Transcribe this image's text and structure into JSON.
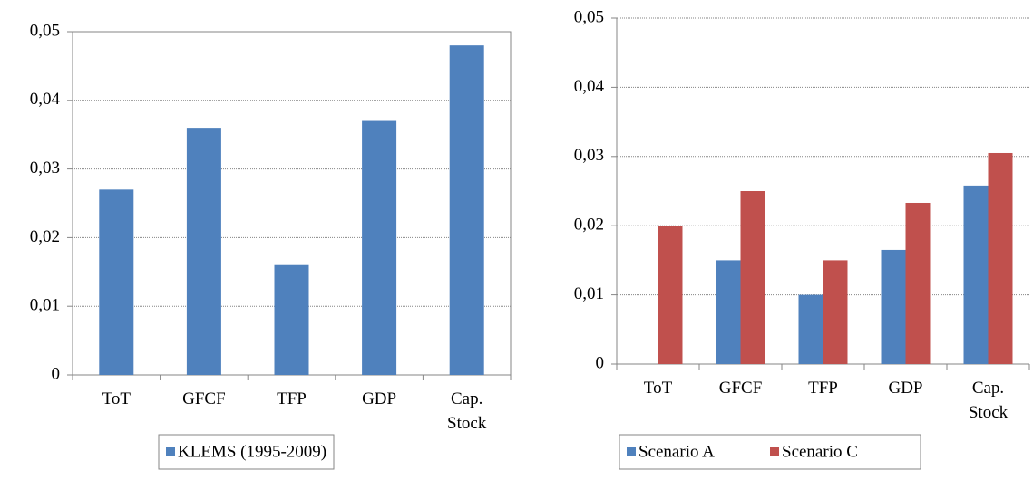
{
  "chart_data": [
    {
      "type": "bar",
      "categories": [
        "ToT",
        "GFCF",
        "TFP",
        "GDP",
        "Cap. Stock"
      ],
      "series": [
        {
          "name": "KLEMS (1995-2009)",
          "color": "#4f81bd",
          "values": [
            0.027,
            0.036,
            0.016,
            0.037,
            0.048
          ]
        }
      ],
      "ylim": [
        0,
        0.05
      ],
      "yticks": [
        0,
        {
          "value": 0.01,
          "label": "0,01"
        },
        {
          "value": 0.02,
          "label": "0,02"
        },
        {
          "value": 0.03,
          "label": "0,03"
        },
        {
          "value": 0.04,
          "label": "0,04"
        },
        {
          "value": 0.05,
          "label": "0,05"
        }
      ],
      "grid": true,
      "legend": "bottom"
    },
    {
      "type": "bar",
      "categories": [
        "ToT",
        "GFCF",
        "TFP",
        "GDP",
        "Cap. Stock"
      ],
      "series": [
        {
          "name": "Scenario A",
          "color": "#4f81bd",
          "values": [
            0,
            0.015,
            0.01,
            0.0165,
            0.0258
          ]
        },
        {
          "name": "Scenario C",
          "color": "#c0504d",
          "values": [
            0.02,
            0.025,
            0.015,
            0.0233,
            0.0305
          ]
        }
      ],
      "ylim": [
        0,
        0.05
      ],
      "yticks": [
        0,
        {
          "value": 0.01,
          "label": "0,01"
        },
        {
          "value": 0.02,
          "label": "0,02"
        },
        {
          "value": 0.03,
          "label": "0,03"
        },
        {
          "value": 0.04,
          "label": "0,04"
        },
        {
          "value": 0.05,
          "label": "0,05"
        }
      ],
      "grid": true,
      "legend": "bottom"
    }
  ]
}
